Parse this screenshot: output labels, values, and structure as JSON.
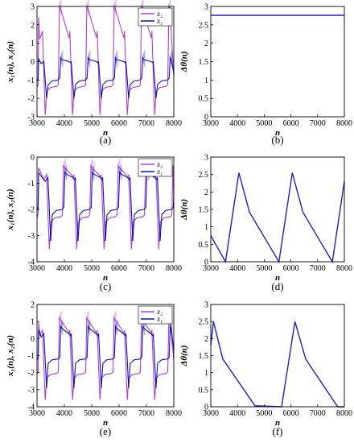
{
  "chart_data": [
    {
      "id": "a",
      "type": "line",
      "caption": "(a)",
      "xlabel": "n",
      "ylabel": "x₁(n), x₂(n)",
      "xlim": [
        3000,
        8000
      ],
      "ylim": [
        -3,
        3
      ],
      "xticks": [
        "3000",
        "4000",
        "5000",
        "6000",
        "7000",
        "8000"
      ],
      "yticks": [
        "-3",
        "-2",
        "-1",
        "0",
        "1",
        "2",
        "3"
      ],
      "legend": {
        "position": "top-right",
        "labels": [
          "x₂",
          "x₁"
        ]
      },
      "series": [
        {
          "name": "x₂",
          "color": "#b040d0",
          "waveform": {
            "period": 1000,
            "start": 3300,
            "peak": 3.0,
            "plateau": -1.4,
            "trough": -2.9
          }
        },
        {
          "name": "x₁",
          "color": "#1010b0",
          "waveform": {
            "period": 1000,
            "start": 3350,
            "peak": 0.2,
            "plateau": -1.05,
            "trough": -2.0
          }
        }
      ]
    },
    {
      "id": "b",
      "type": "line",
      "caption": "(b)",
      "xlabel": "n",
      "ylabel": "Δθ(n)",
      "xlim": [
        3000,
        8000
      ],
      "ylim": [
        0,
        3
      ],
      "xticks": [
        "3000",
        "4000",
        "5000",
        "6000",
        "7000",
        "8000"
      ],
      "yticks": [
        "0",
        "0.5",
        "1",
        "1.5",
        "2",
        "2.5",
        "3"
      ],
      "series": [
        {
          "color": "#2020c0",
          "points": [
            [
              3000,
              2.76
            ],
            [
              8000,
              2.76
            ]
          ]
        }
      ]
    },
    {
      "id": "c",
      "type": "line",
      "caption": "(c)",
      "xlabel": "n",
      "ylabel": "x₁(n), x₂(n)",
      "xlim": [
        3000,
        8000
      ],
      "ylim": [
        -4,
        1
      ],
      "xticks": [
        "3000",
        "4000",
        "5000",
        "6000",
        "7000",
        "8000"
      ],
      "yticks": [
        "-4",
        "-3",
        "-2",
        "-1",
        "0"
      ],
      "legend": {
        "position": "top-right",
        "labels": [
          "x₂",
          "x₁"
        ]
      },
      "series": [
        {
          "name": "x₂",
          "color": "#b040d0",
          "waveform": {
            "period": 1000,
            "start": 3450,
            "peak": 0.6,
            "plateau": -1.9,
            "trough": -3.4
          }
        },
        {
          "name": "x₁",
          "color": "#1010b0",
          "waveform": {
            "period": 1000,
            "start": 3500,
            "peak": 0.3,
            "plateau": -1.55,
            "trough": -3.0
          }
        }
      ]
    },
    {
      "id": "d",
      "type": "line",
      "caption": "(d)",
      "xlabel": "n",
      "ylabel": "Δθ(n)",
      "xlim": [
        3000,
        8000
      ],
      "ylim": [
        0,
        3
      ],
      "xticks": [
        "3000",
        "4000",
        "5000",
        "6000",
        "7000",
        "8000"
      ],
      "yticks": [
        "0",
        "0.5",
        "1",
        "1.5",
        "2",
        "2.5",
        "3"
      ],
      "series": [
        {
          "color": "#2020c0",
          "points": [
            [
              3000,
              0.75
            ],
            [
              3550,
              0.0
            ],
            [
              4050,
              2.55
            ],
            [
              4450,
              1.42
            ],
            [
              5550,
              0.0
            ],
            [
              6050,
              2.55
            ],
            [
              6450,
              1.42
            ],
            [
              7550,
              0.0
            ],
            [
              8000,
              2.3
            ]
          ]
        }
      ]
    },
    {
      "id": "e",
      "type": "line",
      "caption": "(e)",
      "xlabel": "n",
      "ylabel": "x₁(n), x₂(n)",
      "xlim": [
        3000,
        8000
      ],
      "ylim": [
        -4,
        2
      ],
      "xticks": [
        "3000",
        "4000",
        "5000",
        "6000",
        "7000",
        "8000"
      ],
      "yticks": [
        "-4",
        "-3",
        "-2",
        "-1",
        "0",
        "1",
        "2"
      ],
      "legend": {
        "position": "top-right",
        "labels": [
          "x₂",
          "x₁"
        ]
      },
      "series": [
        {
          "name": "x₂",
          "color": "#b040d0",
          "waveform": {
            "period": 1000,
            "start": 3300,
            "peak": 1.2,
            "plateau": -2.1,
            "trough": -3.6
          }
        },
        {
          "name": "x₁",
          "color": "#1010b0",
          "waveform": {
            "period": 1000,
            "start": 3350,
            "peak": 0.7,
            "plateau": -1.25,
            "trough": -2.9
          }
        }
      ]
    },
    {
      "id": "f",
      "type": "line",
      "caption": "(f)",
      "xlabel": "n",
      "ylabel": "Δθ(n)",
      "xlim": [
        3000,
        8000
      ],
      "ylim": [
        0,
        3
      ],
      "xticks": [
        "3000",
        "4000",
        "5000",
        "6000",
        "7000",
        "8000"
      ],
      "yticks": [
        "0",
        "0.5",
        "1",
        "1.5",
        "2",
        "2.5",
        "3"
      ],
      "series": [
        {
          "color": "#2020c0",
          "points": [
            [
              3000,
              1.8
            ],
            [
              3100,
              2.5
            ],
            [
              3450,
              1.4
            ],
            [
              4650,
              0.03
            ],
            [
              5650,
              0.0
            ],
            [
              6150,
              2.5
            ],
            [
              6550,
              1.4
            ],
            [
              7750,
              0.0
            ],
            [
              8000,
              0.0
            ]
          ]
        }
      ]
    }
  ]
}
